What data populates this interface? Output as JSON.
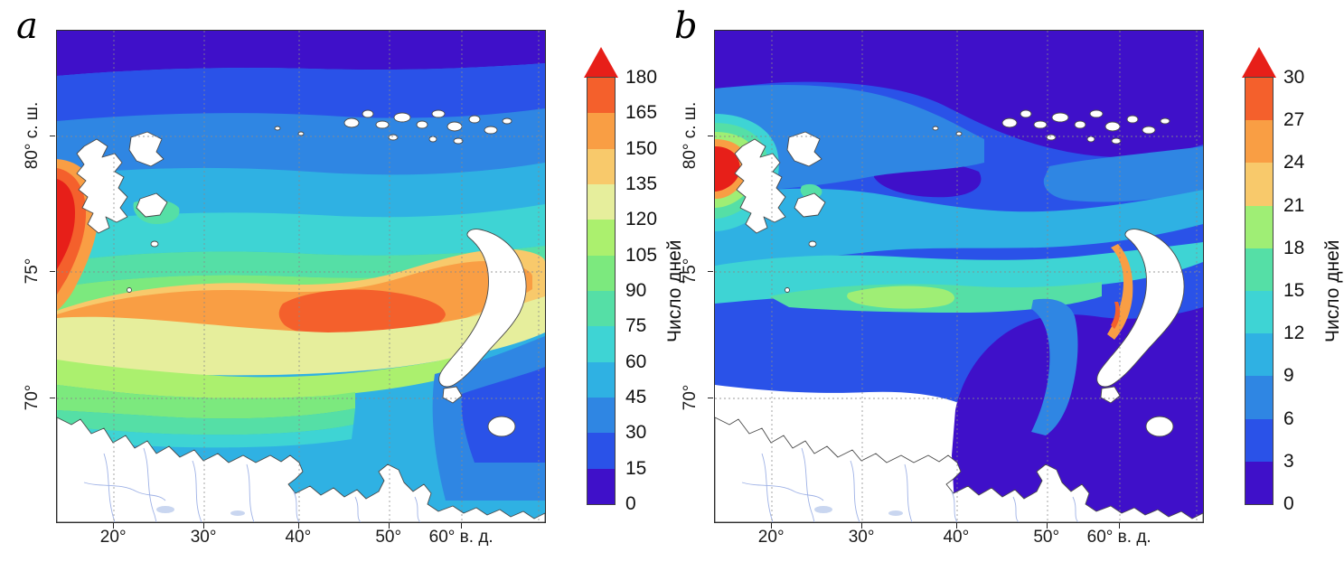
{
  "figure": {
    "background": "#ffffff",
    "panels": [
      {
        "label": "a",
        "axis": {
          "y_ticks": [
            "80° с. ш.",
            "75°",
            "70°"
          ],
          "x_ticks": [
            "20°",
            "30°",
            "40°",
            "50°",
            "60° в. д."
          ]
        },
        "colorbar": {
          "label": "Число дней",
          "ticks_bottom_to_top": [
            "0",
            "15",
            "30",
            "45",
            "60",
            "75",
            "90",
            "105",
            "120",
            "135",
            "150",
            "165",
            "180"
          ],
          "colors_bottom_to_top": [
            "#3f10c9",
            "#2a52e8",
            "#2f86e3",
            "#2fb1e3",
            "#3ed4d4",
            "#55dfa6",
            "#7ce97e",
            "#abf06e",
            "#e6ee9c",
            "#f8c96b",
            "#f99e44",
            "#f4602c"
          ],
          "arrow_color": "#e71f19"
        }
      },
      {
        "label": "b",
        "axis": {
          "y_ticks": [
            "80° с. ш.",
            "75°",
            "70°"
          ],
          "x_ticks": [
            "20°",
            "30°",
            "40°",
            "50°",
            "60° в. д."
          ]
        },
        "colorbar": {
          "label": "Число дней",
          "ticks_bottom_to_top": [
            "0",
            "3",
            "6",
            "9",
            "12",
            "15",
            "18",
            "21",
            "24",
            "27",
            "30"
          ],
          "colors_bottom_to_top": [
            "#3f10c9",
            "#2a52e8",
            "#2f86e3",
            "#2fb1e3",
            "#3ed4d4",
            "#55dfa6",
            "#9fee75",
            "#f8c96b",
            "#f99e44",
            "#f4602c"
          ],
          "arrow_color": "#e71f19"
        }
      }
    ]
  },
  "chart_data": [
    {
      "type": "heatmap",
      "variant": "geographic filled-contour map (Barents Sea region)",
      "panel": "a",
      "x_tick_labels": [
        "20°",
        "30°",
        "40°",
        "50°",
        "60° в. д."
      ],
      "y_tick_labels": [
        "80° с. ш.",
        "75°",
        "70°"
      ],
      "colorbar_label": "Число дней",
      "levels": [
        0,
        15,
        30,
        45,
        60,
        75,
        90,
        105,
        120,
        135,
        150,
        165,
        180
      ],
      "colorbar_extend": "max (red arrow above 180)",
      "grid": "dashed graticule every 10° lon / 5° lat",
      "features": [
        "red maximum (165-180, arrow >180 days) in a tongue along the western coast of Svalbard at the left edge near 76-80° N",
        "orange band of 135-165 days stretching across the central Barents Sea around 74-76° N toward Novaya Zemlya",
        "dark blue 0-30 days along the northern edge of the map (above ~82° N)",
        "green to yellow 75-135 days over the southern Barents Sea near the Norwegian, Murman and Kanin coasts",
        "blue 15-60 days in the southeastern corner (Pechora Sea) and around Franz Josef Land",
        "white land: Scandinavia/Kola Peninsula, Svalbard, Franz Josef Land, Novaya Zemlya, Kolguyev Island"
      ]
    },
    {
      "type": "heatmap",
      "variant": "geographic filled-contour map (Barents Sea region)",
      "panel": "b",
      "x_tick_labels": [
        "20°",
        "30°",
        "40°",
        "50°",
        "60° в. д."
      ],
      "y_tick_labels": [
        "80° с. ш.",
        "75°",
        "70°"
      ],
      "colorbar_label": "Число дней",
      "levels": [
        0,
        3,
        6,
        9,
        12,
        15,
        18,
        21,
        24,
        27,
        30
      ],
      "colorbar_extend": "max (red arrow above 30)",
      "grid": "dashed graticule every 10° lon / 5° lat",
      "features": [
        "red maximum (27-30, arrow >30 days) immediately west of Svalbard, ringed by orange, yellow-green and cyan",
        "cyan-green band of 9-18 days across the central Barents Sea near 74-76° N",
        "yellow-green to orange patches (18-27 days) along the west coast of Novaya Zemlya",
        "dark blue-violet 0-3 days over the northern area and over most of the southeastern Barents/Pechora Sea",
        "no-data white strip between the coloured field and the Norwegian coast in the southwest"
      ]
    }
  ]
}
